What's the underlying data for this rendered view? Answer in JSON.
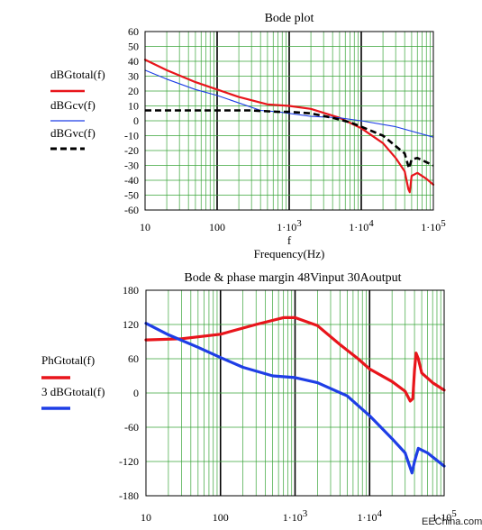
{
  "watermark": "EEChina.com",
  "colors": {
    "red": "#e8151b",
    "blue": "#1e3ee6",
    "black": "#000000",
    "grid_minor": "#3aa53a",
    "grid_major": "#000000"
  },
  "chart_data": [
    {
      "type": "line",
      "title": "Bode plot",
      "xlabel_var": "f",
      "xlabel": "Frequency(Hz)",
      "x_scale": "log",
      "xlim": [
        10,
        100000
      ],
      "ylim": [
        -60,
        60
      ],
      "x_ticks": [
        {
          "value": 10,
          "label": "10"
        },
        {
          "value": 100,
          "label": "100"
        },
        {
          "value": 1000,
          "label": "1·10",
          "exp": "3"
        },
        {
          "value": 10000,
          "label": "1·10",
          "exp": "4"
        },
        {
          "value": 100000,
          "label": "1·10",
          "exp": "5"
        }
      ],
      "y_ticks": [
        60,
        50,
        40,
        30,
        20,
        10,
        0,
        -10,
        -20,
        -30,
        -40,
        -50,
        -60
      ],
      "series": [
        {
          "name": "dBGtotal(f)",
          "color": "#e8151b",
          "style": "solid",
          "width": 2.2,
          "points": [
            [
              10,
              41
            ],
            [
              20,
              34
            ],
            [
              50,
              26
            ],
            [
              100,
              21
            ],
            [
              200,
              16
            ],
            [
              500,
              11
            ],
            [
              1000,
              10
            ],
            [
              2000,
              8
            ],
            [
              5000,
              2
            ],
            [
              10000,
              -5
            ],
            [
              20000,
              -15
            ],
            [
              30000,
              -25
            ],
            [
              40000,
              -34
            ],
            [
              45000,
              -46
            ],
            [
              47000,
              -48
            ],
            [
              50000,
              -37
            ],
            [
              60000,
              -35
            ],
            [
              80000,
              -39
            ],
            [
              100000,
              -43
            ]
          ]
        },
        {
          "name": "dBGcv(f)",
          "color": "#1e3ee6",
          "style": "solid",
          "width": 1.1,
          "points": [
            [
              10,
              34
            ],
            [
              20,
              28
            ],
            [
              50,
              21
            ],
            [
              100,
              17
            ],
            [
              200,
              12
            ],
            [
              400,
              7
            ],
            [
              700,
              6
            ],
            [
              1000,
              5
            ],
            [
              2000,
              3
            ],
            [
              5000,
              2
            ],
            [
              10000,
              0
            ],
            [
              30000,
              -4
            ],
            [
              100000,
              -11
            ]
          ]
        },
        {
          "name": "dBGvc(f)",
          "color": "#000000",
          "style": "dashed",
          "width": 2.6,
          "points": [
            [
              10,
              7
            ],
            [
              100,
              7
            ],
            [
              300,
              7
            ],
            [
              700,
              6
            ],
            [
              1000,
              6
            ],
            [
              2000,
              5
            ],
            [
              4000,
              2
            ],
            [
              7000,
              -1
            ],
            [
              10000,
              -4
            ],
            [
              20000,
              -10
            ],
            [
              30000,
              -17
            ],
            [
              40000,
              -22
            ],
            [
              44000,
              -29
            ],
            [
              46000,
              -32
            ],
            [
              50000,
              -26
            ],
            [
              60000,
              -25
            ],
            [
              100000,
              -30
            ]
          ]
        }
      ]
    },
    {
      "type": "line",
      "title": "Bode & phase margin 48Vinput 30Aoutput",
      "x_scale": "log",
      "xlim": [
        10,
        100000
      ],
      "ylim": [
        -180,
        180
      ],
      "x_ticks": [
        {
          "value": 10,
          "label": "10"
        },
        {
          "value": 100,
          "label": "100"
        },
        {
          "value": 1000,
          "label": "1·10",
          "exp": "3"
        },
        {
          "value": 10000,
          "label": "1·10",
          "exp": "4"
        },
        {
          "value": 100000,
          "label": "1·10",
          "exp": "5"
        }
      ],
      "y_ticks": [
        180,
        120,
        60,
        0,
        -60,
        -120,
        -180
      ],
      "series": [
        {
          "name": "PhGtotal(f)",
          "color": "#e8151b",
          "style": "solid",
          "width": 3.2,
          "points": [
            [
              10,
              93
            ],
            [
              30,
              95
            ],
            [
              100,
              103
            ],
            [
              300,
              120
            ],
            [
              700,
              132
            ],
            [
              1000,
              132
            ],
            [
              2000,
              118
            ],
            [
              4000,
              85
            ],
            [
              7000,
              60
            ],
            [
              10000,
              42
            ],
            [
              20000,
              20
            ],
            [
              30000,
              3
            ],
            [
              35000,
              -14
            ],
            [
              38000,
              -10
            ],
            [
              40000,
              40
            ],
            [
              42000,
              70
            ],
            [
              45000,
              60
            ],
            [
              50000,
              35
            ],
            [
              70000,
              18
            ],
            [
              100000,
              5
            ]
          ]
        },
        {
          "name": "3 dBGtotal(f)",
          "color": "#1e3ee6",
          "style": "solid",
          "width": 3.2,
          "points": [
            [
              10,
              122
            ],
            [
              20,
              102
            ],
            [
              50,
              80
            ],
            [
              100,
              62
            ],
            [
              200,
              45
            ],
            [
              500,
              30
            ],
            [
              1000,
              27
            ],
            [
              2000,
              18
            ],
            [
              5000,
              -5
            ],
            [
              10000,
              -40
            ],
            [
              20000,
              -80
            ],
            [
              30000,
              -105
            ],
            [
              37000,
              -140
            ],
            [
              40000,
              -120
            ],
            [
              45000,
              -97
            ],
            [
              60000,
              -105
            ],
            [
              100000,
              -128
            ]
          ]
        }
      ]
    }
  ]
}
